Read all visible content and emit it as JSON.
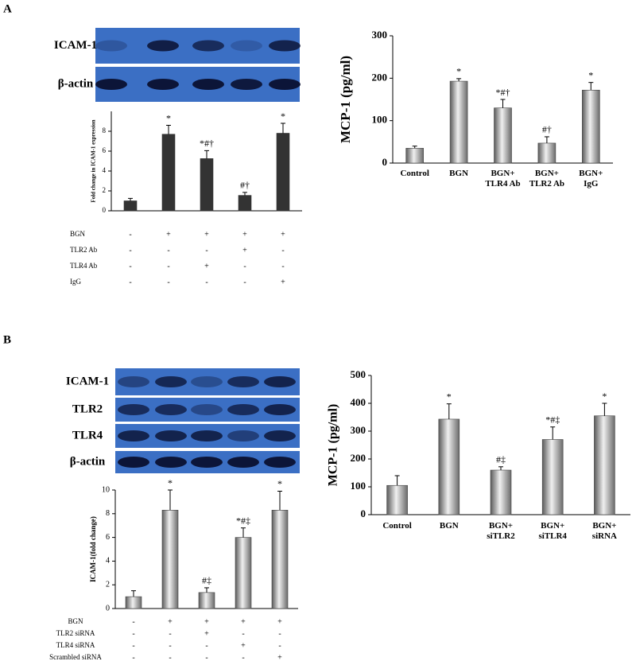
{
  "panel_labels": [
    "A",
    "B"
  ],
  "blots": [
    {
      "labels": [
        "ICAM-1",
        "β-actin"
      ]
    },
    {
      "labels": [
        "ICAM-1",
        "TLR2",
        "TLR4",
        "β-actin"
      ]
    }
  ],
  "treatment_tables": [
    {
      "rows": [
        {
          "label": "BGN",
          "marks": [
            "-",
            "+",
            "+",
            "+",
            "+"
          ]
        },
        {
          "label": "TLR2 Ab",
          "marks": [
            "-",
            "-",
            "-",
            "+",
            "-"
          ]
        },
        {
          "label": "TLR4 Ab",
          "marks": [
            "-",
            "-",
            "+",
            "-",
            "-"
          ]
        },
        {
          "label": "IgG",
          "marks": [
            "-",
            "-",
            "-",
            "-",
            "+"
          ]
        }
      ]
    },
    {
      "rows": [
        {
          "label": "BGN",
          "marks": [
            "-",
            "+",
            "+",
            "+",
            "+"
          ]
        },
        {
          "label": "TLR2 siRNA",
          "marks": [
            "-",
            "-",
            "+",
            "-",
            "-"
          ]
        },
        {
          "label": "TLR4 siRNA",
          "marks": [
            "-",
            "-",
            "-",
            "+",
            "-"
          ]
        },
        {
          "label": "Scrambled siRNA",
          "marks": [
            "-",
            "-",
            "-",
            "-",
            "+"
          ]
        }
      ]
    }
  ],
  "chart_data": [
    {
      "type": "bar",
      "ylabel": "Fold change in ICAM-1 expression",
      "values": [
        1.0,
        7.7,
        5.25,
        1.55,
        7.8
      ],
      "errors": [
        0.25,
        0.9,
        0.8,
        0.3,
        1.0
      ],
      "annotations": [
        null,
        "*",
        "*#†",
        "#†",
        "*"
      ],
      "ylim": [
        0,
        10
      ],
      "yticks": [
        0,
        2,
        4,
        6,
        8
      ],
      "color": "#333333",
      "fill_style": "solid"
    },
    {
      "type": "bar",
      "ylabel": "MCP-1 (pg/ml)",
      "categories": [
        "Control",
        "BGN",
        "BGN+\nTLR4 Ab",
        "BGN+\nTLR2 Ab",
        "BGN+\nIgG"
      ],
      "values": [
        35,
        193,
        130,
        47,
        172
      ],
      "errors": [
        5,
        6,
        20,
        15,
        18
      ],
      "annotations": [
        null,
        "*",
        "*#†",
        "#†",
        "*"
      ],
      "ylim": [
        0,
        300
      ],
      "yticks": [
        0,
        100,
        200,
        300
      ],
      "color": "#8c8c8c",
      "fill_style": "gradient"
    },
    {
      "type": "bar",
      "ylabel": "ICAM-1(fold change)",
      "values": [
        1.0,
        8.3,
        1.35,
        6.0,
        8.3
      ],
      "errors": [
        0.5,
        1.7,
        0.4,
        0.8,
        1.6
      ],
      "annotations": [
        null,
        "*",
        "#‡",
        "*#‡",
        "*"
      ],
      "ylim": [
        0,
        10
      ],
      "yticks": [
        0,
        2,
        4,
        6,
        8,
        10
      ],
      "color": "#8c8c8c",
      "fill_style": "gradient"
    },
    {
      "type": "bar",
      "ylabel": "MCP-1 (pg/ml)",
      "categories": [
        "Control",
        "BGN",
        "BGN+\nsiTLR2",
        "BGN+\nsiTLR4",
        "BGN+\nsiRNA"
      ],
      "values": [
        105,
        343,
        160,
        270,
        355
      ],
      "errors": [
        35,
        55,
        12,
        45,
        45
      ],
      "annotations": [
        null,
        "*",
        "#‡",
        "*#‡",
        "*"
      ],
      "ylim": [
        0,
        500
      ],
      "yticks": [
        0,
        100,
        200,
        300,
        400,
        500
      ],
      "color": "#8c8c8c",
      "fill_style": "gradient"
    }
  ]
}
